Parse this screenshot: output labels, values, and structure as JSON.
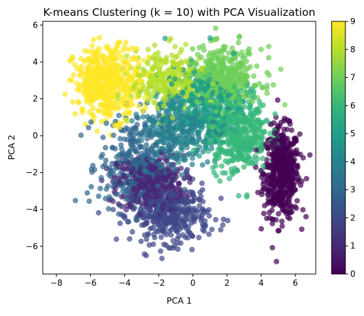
{
  "chart_data": {
    "type": "scatter",
    "title": "K-means Clustering (k = 10) with PCA Visualization",
    "xlabel": "PCA 1",
    "ylabel": "PCA 2",
    "xlim": [
      -8.8,
      7.2
    ],
    "ylim": [
      -7.5,
      6.2
    ],
    "xticks": [
      -8,
      -6,
      -4,
      -2,
      0,
      2,
      4,
      6
    ],
    "yticks": [
      -6,
      -4,
      -2,
      0,
      2,
      4,
      6
    ],
    "colormap": "viridis",
    "point_alpha": 0.7,
    "colorbar": {
      "min": 0,
      "max": 9,
      "ticks": [
        0,
        1,
        2,
        3,
        4,
        5,
        6,
        7,
        8,
        9
      ]
    },
    "grid": false,
    "legend": "none",
    "clusters": [
      {
        "label": 0,
        "center": [
          5.2,
          -2.0
        ],
        "spread": [
          0.7,
          1.6
        ],
        "n": 550,
        "color": "#440154"
      },
      {
        "label": 1,
        "center": [
          -2.5,
          -2.6
        ],
        "spread": [
          1.3,
          1.0
        ],
        "n": 400,
        "color": "#482878"
      },
      {
        "label": 2,
        "center": [
          -1.3,
          -4.3
        ],
        "spread": [
          1.5,
          1.0
        ],
        "n": 380,
        "color": "#3e4989"
      },
      {
        "label": 3,
        "center": [
          -3.4,
          -1.6
        ],
        "spread": [
          1.4,
          1.7
        ],
        "n": 330,
        "color": "#31688e"
      },
      {
        "label": 4,
        "center": [
          -0.8,
          0.4
        ],
        "spread": [
          1.6,
          1.4
        ],
        "n": 320,
        "color": "#26828e"
      },
      {
        "label": 5,
        "center": [
          0.6,
          1.8
        ],
        "spread": [
          1.5,
          1.3
        ],
        "n": 320,
        "color": "#1f9e89"
      },
      {
        "label": 6,
        "center": [
          2.6,
          0.2
        ],
        "spread": [
          1.2,
          1.5
        ],
        "n": 440,
        "color": "#35b779"
      },
      {
        "label": 7,
        "center": [
          1.8,
          3.1
        ],
        "spread": [
          1.5,
          1.1
        ],
        "n": 420,
        "color": "#6ece58"
      },
      {
        "label": 8,
        "center": [
          -1.5,
          3.0
        ],
        "spread": [
          1.4,
          1.1
        ],
        "n": 260,
        "color": "#b5de2b"
      },
      {
        "label": 9,
        "center": [
          -5.0,
          2.9
        ],
        "spread": [
          1.3,
          1.3
        ],
        "n": 470,
        "color": "#fde725"
      }
    ]
  }
}
